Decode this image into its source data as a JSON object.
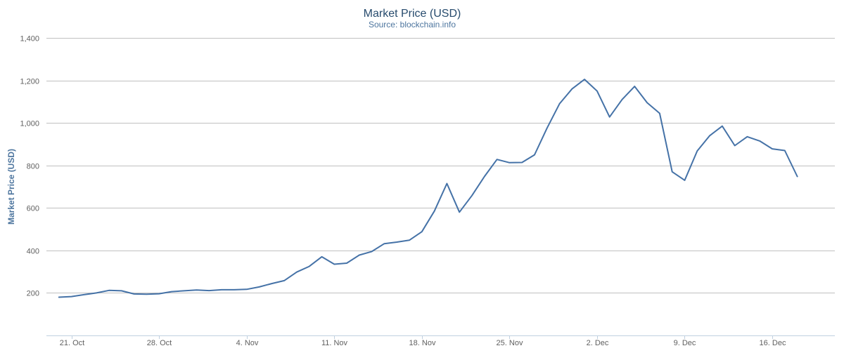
{
  "chart_data": {
    "type": "line",
    "title": "Market Price (USD)",
    "subtitle": "Source: blockchain.info",
    "xlabel": "",
    "ylabel": "Market Price (USD)",
    "ylim": [
      0,
      1400
    ],
    "y_ticks": [
      200,
      400,
      600,
      800,
      1000,
      1200,
      1400
    ],
    "y_tick_labels": [
      "200",
      "400",
      "600",
      "800",
      "1,000",
      "1,200",
      "1,400"
    ],
    "xlim": [
      "2013-10-19",
      "2013-12-21"
    ],
    "x_ticks": [
      "2013-10-21",
      "2013-10-28",
      "2013-11-04",
      "2013-11-11",
      "2013-11-18",
      "2013-11-25",
      "2013-12-02",
      "2013-12-09",
      "2013-12-16"
    ],
    "x_tick_labels": [
      "21. Oct",
      "28. Oct",
      "4. Nov",
      "11. Nov",
      "18. Nov",
      "25. Nov",
      "2. Dec",
      "9. Dec",
      "16. Dec"
    ],
    "grid": true,
    "legend": "none",
    "series": [
      {
        "color": "#4572a7",
        "x": [
          "2013-10-20",
          "2013-10-21",
          "2013-10-22",
          "2013-10-23",
          "2013-10-24",
          "2013-10-25",
          "2013-10-26",
          "2013-10-27",
          "2013-10-28",
          "2013-10-29",
          "2013-10-30",
          "2013-10-31",
          "2013-11-01",
          "2013-11-02",
          "2013-11-03",
          "2013-11-04",
          "2013-11-05",
          "2013-11-06",
          "2013-11-07",
          "2013-11-08",
          "2013-11-09",
          "2013-11-10",
          "2013-11-11",
          "2013-11-12",
          "2013-11-13",
          "2013-11-14",
          "2013-11-15",
          "2013-11-16",
          "2013-11-17",
          "2013-11-18",
          "2013-11-19",
          "2013-11-20",
          "2013-11-21",
          "2013-11-22",
          "2013-11-23",
          "2013-11-24",
          "2013-11-25",
          "2013-11-26",
          "2013-11-27",
          "2013-11-28",
          "2013-11-29",
          "2013-11-30",
          "2013-12-01",
          "2013-12-02",
          "2013-12-03",
          "2013-12-04",
          "2013-12-05",
          "2013-12-06",
          "2013-12-07",
          "2013-12-08",
          "2013-12-09",
          "2013-12-10",
          "2013-12-11",
          "2013-12-12",
          "2013-12-13",
          "2013-12-14",
          "2013-12-15",
          "2013-12-16",
          "2013-12-17",
          "2013-12-18"
        ],
        "values": [
          180,
          183,
          192,
          200,
          212,
          210,
          195,
          194,
          196,
          206,
          210,
          214,
          211,
          215,
          215,
          217,
          228,
          244,
          258,
          298,
          325,
          370,
          335,
          340,
          378,
          395,
          432,
          439,
          448,
          488,
          585,
          715,
          580,
          658,
          748,
          828,
          813,
          814,
          850,
          975,
          1090,
          1160,
          1205,
          1150,
          1028,
          1110,
          1172,
          1095,
          1045,
          770,
          730,
          868,
          940,
          985,
          893,
          935,
          915,
          878,
          870,
          748
        ]
      }
    ]
  }
}
